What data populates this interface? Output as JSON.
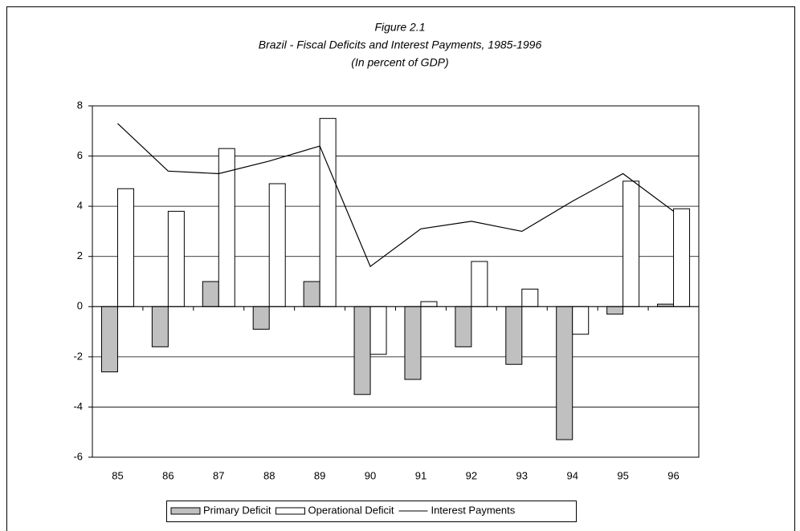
{
  "chart_data": {
    "type": "bar",
    "title": "Figure 2.1",
    "subtitle": "Brazil - Fiscal Deficits and Interest Payments, 1985-1996",
    "note": "(In percent of GDP)",
    "categories": [
      "85",
      "86",
      "87",
      "88",
      "89",
      "90",
      "91",
      "92",
      "93",
      "94",
      "95",
      "96"
    ],
    "series": [
      {
        "name": "Primary Deficit",
        "color": "#c0c0c0",
        "values": [
          -2.6,
          -1.6,
          1.0,
          -0.9,
          1.0,
          -3.5,
          -2.9,
          -1.6,
          -2.3,
          -5.3,
          -0.3,
          0.1
        ]
      },
      {
        "name": "Operational Deficit",
        "color": "#ffffff",
        "values": [
          4.7,
          3.8,
          6.3,
          4.9,
          7.5,
          -1.9,
          0.2,
          1.8,
          0.7,
          -1.1,
          5.0,
          3.9
        ]
      },
      {
        "name": "Interest Payments",
        "color": "#000000",
        "type": "line",
        "values": [
          7.3,
          5.4,
          5.3,
          5.8,
          6.4,
          1.6,
          3.1,
          3.4,
          3.0,
          4.2,
          5.3,
          3.8
        ]
      }
    ],
    "ylim": [
      -6,
      8
    ],
    "yticks": [
      -6,
      -4,
      -2,
      0,
      2,
      4,
      6,
      8
    ],
    "grid": true,
    "legend": "bottom"
  }
}
